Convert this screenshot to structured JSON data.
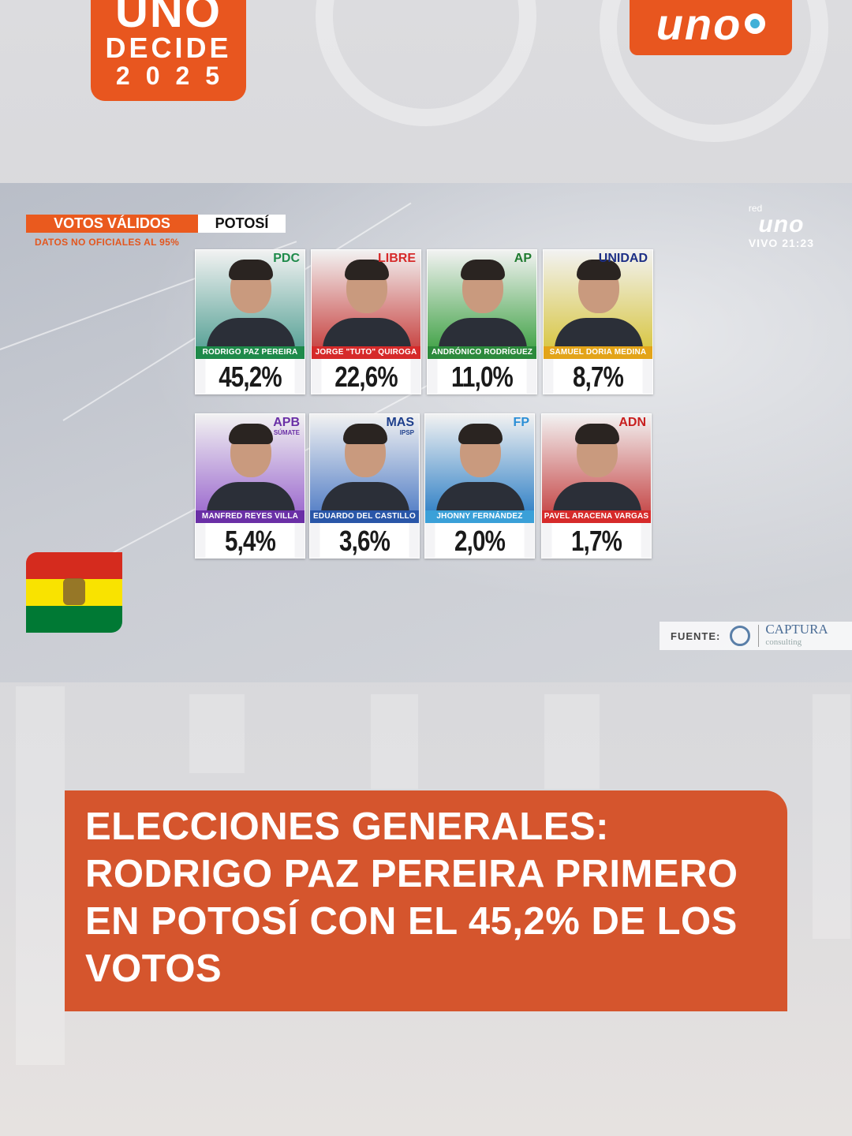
{
  "brand_logo": {
    "line1": "UNO",
    "line2": "DECIDE",
    "line3": "2025"
  },
  "network_logo": {
    "wordmark": "uno"
  },
  "broadcast": {
    "tag_main": "VOTOS VÁLIDOS",
    "tag_region": "POTOSÍ",
    "note": "DATOS NO OFICIALES AL 95%",
    "live": {
      "network_small": "red",
      "network": "uno",
      "time": "VIVO 21:23"
    },
    "source": {
      "label": "FUENTE:",
      "brand": "CAPTURA",
      "brand_sub": "consulting"
    }
  },
  "candidates": [
    {
      "party": "PDC",
      "party_sub": "",
      "name": "RODRIGO PAZ PEREIRA",
      "pct": "45,2%",
      "color": "#1e8a4a",
      "party_color": "#1e8a4a",
      "bg": "#5ea59a"
    },
    {
      "party": "LIBRE",
      "party_sub": "",
      "name": "JORGE \"TUTO\" QUIROGA",
      "pct": "22,6%",
      "color": "#d62a2a",
      "party_color": "#d62a2a",
      "bg": "#c94a48"
    },
    {
      "party": "AP",
      "party_sub": "",
      "name": "ANDRÓNICO RODRÍGUEZ",
      "pct": "11,0%",
      "color": "#2c8a3c",
      "party_color": "#1f7a2f",
      "bg": "#4aa64f"
    },
    {
      "party": "UNIDAD",
      "party_sub": "",
      "name": "SAMUEL DORIA MEDINA",
      "pct": "8,7%",
      "color": "#e3a419",
      "party_color": "#1d2f86",
      "bg": "#d9c84a"
    },
    {
      "party": "APB",
      "party_sub": "SÚMATE",
      "name": "MANFRED REYES VILLA",
      "pct": "5,4%",
      "color": "#6a2fa6",
      "party_color": "#6a2fa6",
      "bg": "#a070d0"
    },
    {
      "party": "MAS",
      "party_sub": "IPSP",
      "name": "EDUARDO DEL CASTILLO",
      "pct": "3,6%",
      "color": "#2956a8",
      "party_color": "#1e3f8c",
      "bg": "#5b84c8"
    },
    {
      "party": "FP",
      "party_sub": "",
      "name": "JHONNY FERNÁNDEZ",
      "pct": "2,0%",
      "color": "#3aa0d8",
      "party_color": "#2a8ed6",
      "bg": "#3a86c8"
    },
    {
      "party": "ADN",
      "party_sub": "",
      "name": "PAVEL ARACENA VARGAS",
      "pct": "1,7%",
      "color": "#d62a2a",
      "party_color": "#c81e1e",
      "bg": "#c85050"
    }
  ],
  "headline": {
    "text": "ELECCIONES GENERALES: RODRIGO PAZ PEREIRA PRIMERO EN POTOSÍ CON EL 45,2% DE LOS VOTOS"
  },
  "flag_colors": [
    "#d52b1e",
    "#f9e300",
    "#007934"
  ]
}
